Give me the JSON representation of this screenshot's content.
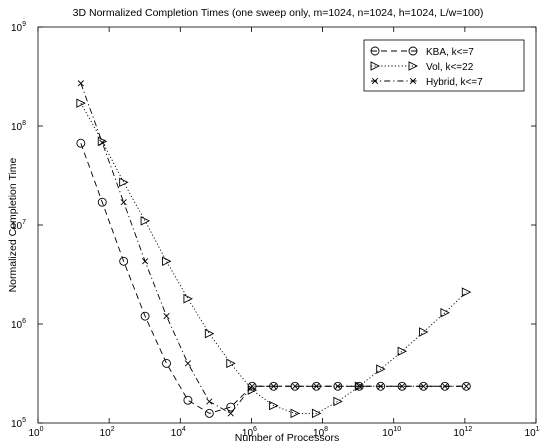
{
  "chart_data": {
    "type": "line",
    "title": "3D Normalized Completion Times (one sweep only, m=1024, n=1024, h=1024, L/w=100)",
    "xlabel": "Number of Processors",
    "ylabel": "Normalized Completion Time",
    "xscale": "log",
    "yscale": "log",
    "xlim": [
      1,
      100000000000000.0
    ],
    "ylim": [
      100000.0,
      1000000000.0
    ],
    "x_ticks": [
      1,
      100,
      10000,
      1000000,
      100000000,
      10000000000,
      1000000000000,
      100000000000000
    ],
    "x_tick_labels": [
      {
        "base": "10",
        "exp": "0"
      },
      {
        "base": "10",
        "exp": "2"
      },
      {
        "base": "10",
        "exp": "4"
      },
      {
        "base": "10",
        "exp": "6"
      },
      {
        "base": "10",
        "exp": "8"
      },
      {
        "base": "10",
        "exp": "10"
      },
      {
        "base": "10",
        "exp": "12"
      },
      {
        "base": "10",
        "exp": "14"
      }
    ],
    "y_ticks": [
      100000,
      1000000,
      10000000,
      100000000,
      1000000000
    ],
    "y_tick_labels": [
      {
        "base": "10",
        "exp": "5"
      },
      {
        "base": "10",
        "exp": "6"
      },
      {
        "base": "10",
        "exp": "7"
      },
      {
        "base": "10",
        "exp": "8"
      },
      {
        "base": "10",
        "exp": "9"
      }
    ],
    "grid": false,
    "legend_position": "top-right",
    "series": [
      {
        "name": "KBA, k<=7",
        "color": "#000000",
        "linestyle": "dashed",
        "marker": "circle",
        "x": [
          16,
          64,
          256,
          1024,
          4096,
          16384,
          65536,
          262144,
          1048576,
          4194304,
          16777216,
          67108864,
          268435456,
          1073741824,
          4294967296,
          17179869184,
          68719476736,
          274877906944,
          1099511627776
        ],
        "y": [
          67000000,
          17000000,
          4300000,
          1200000,
          400000,
          170000,
          125000,
          145000,
          235000,
          235000,
          235000,
          235000,
          235000,
          235000,
          235000,
          235000,
          235000,
          235000,
          235000
        ]
      },
      {
        "name": "Vol, k<=22",
        "color": "#000000",
        "linestyle": "dotted",
        "marker": "triangle-right",
        "x": [
          16,
          64,
          256,
          1024,
          4096,
          16384,
          65536,
          262144,
          1048576,
          4194304,
          16777216,
          67108864,
          268435456,
          1073741824,
          4294967296,
          17179869184,
          68719476736,
          274877906944,
          1099511627776
        ],
        "y": [
          170000000,
          70000000,
          27000000,
          11000000,
          4300000,
          1800000,
          800000,
          400000,
          215000,
          150000,
          125000,
          125000,
          165000,
          235000,
          350000,
          530000,
          830000,
          1300000,
          2100000
        ]
      },
      {
        "name": "Hybrid, k<=7",
        "color": "#000000",
        "linestyle": "dashdot",
        "marker": "x",
        "x": [
          16,
          64,
          256,
          1024,
          4096,
          16384,
          65536,
          262144,
          1048576,
          4194304,
          16777216,
          67108864,
          268435456,
          1073741824,
          4294967296,
          17179869184,
          68719476736,
          274877906944,
          1099511627776
        ],
        "y": [
          270000000,
          68000000,
          17000000,
          4300000,
          1200000,
          400000,
          165000,
          125000,
          235000,
          235000,
          235000,
          235000,
          235000,
          235000,
          235000,
          235000,
          235000,
          235000,
          235000
        ]
      }
    ]
  }
}
